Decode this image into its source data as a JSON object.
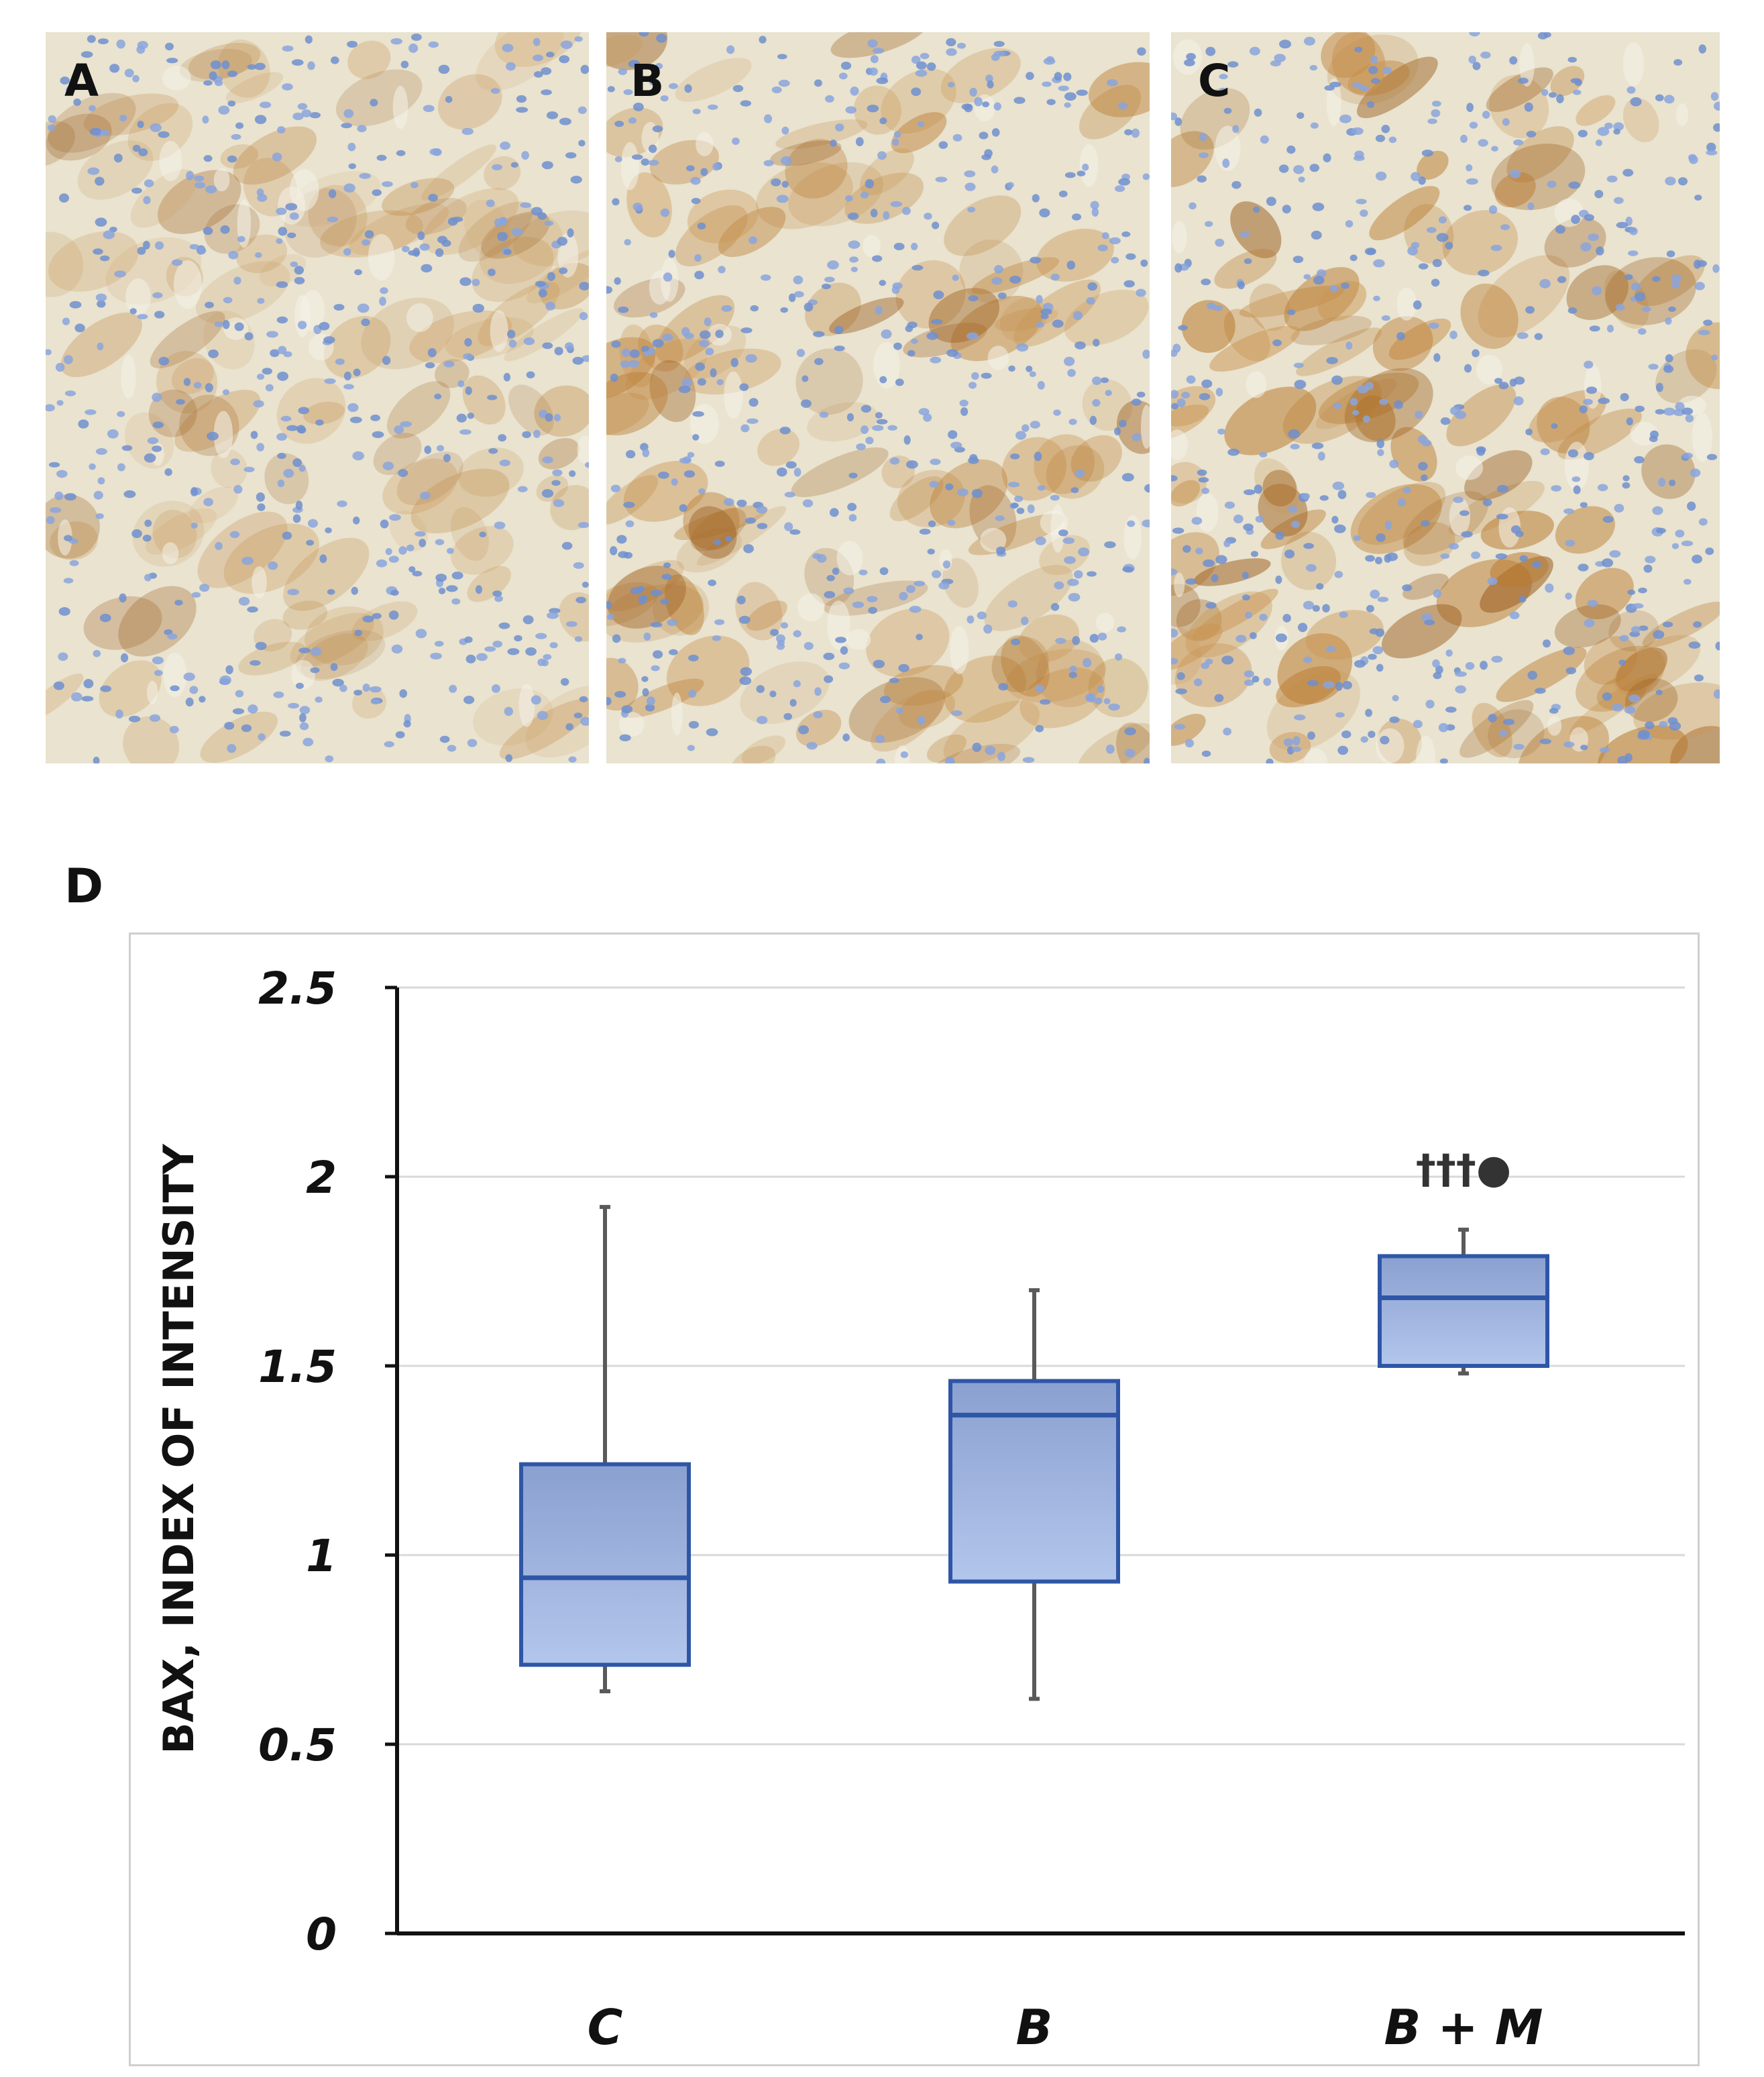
{
  "panels": [
    {
      "label": "A",
      "stain": "light"
    },
    {
      "label": "B",
      "stain": "medium"
    },
    {
      "label": "C",
      "stain": "strong"
    }
  ],
  "chart_panel_label": "D",
  "chart_data": {
    "type": "box",
    "title": "",
    "ylabel": "BAX, INDEX OF INTENSITY",
    "xlabel": "",
    "ylim": [
      0,
      2.5
    ],
    "yticks": [
      0,
      0.5,
      1,
      1.5,
      2,
      2.5
    ],
    "ytick_labels": [
      "0",
      "0.5",
      "1",
      "1.5",
      "2",
      "2.5"
    ],
    "grid": true,
    "categories": [
      "C",
      "B",
      "B + M"
    ],
    "boxes": [
      {
        "category": "C",
        "min": 0.64,
        "q1": 0.71,
        "median": 0.94,
        "q3": 1.24,
        "max": 1.92,
        "annotation": ""
      },
      {
        "category": "B",
        "min": 0.62,
        "q1": 0.93,
        "median": 1.37,
        "q3": 1.46,
        "max": 1.7,
        "annotation": ""
      },
      {
        "category": "B + M",
        "min": 1.48,
        "q1": 1.5,
        "median": 1.68,
        "q3": 1.79,
        "max": 1.86,
        "annotation": "†††●"
      }
    ],
    "colors": {
      "box_fill_top": "#8aa0d0",
      "box_fill_bottom": "#b3c6ec",
      "box_edge": "#2f56a6",
      "whisker": "#5a5a5a",
      "grid": "#d9d9d9"
    }
  }
}
